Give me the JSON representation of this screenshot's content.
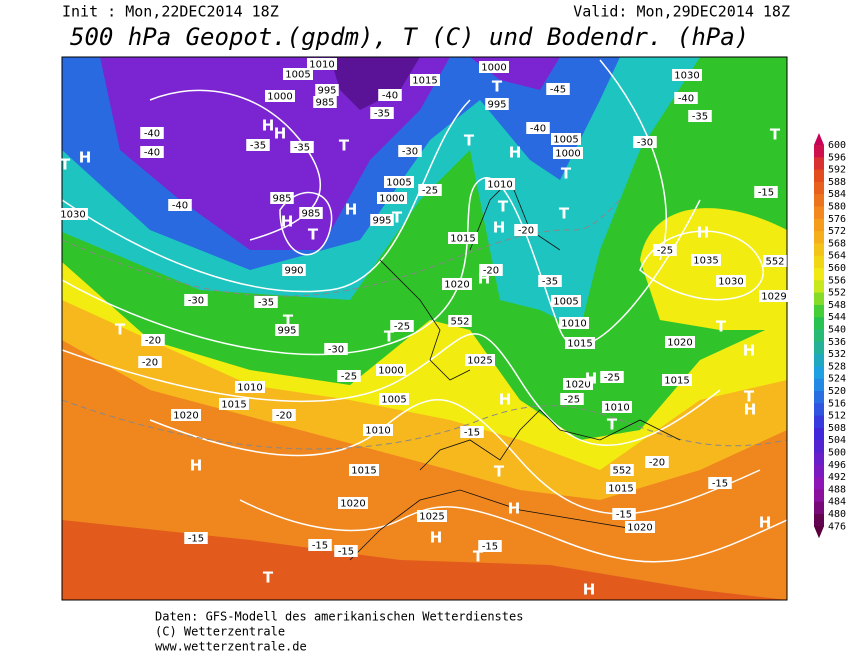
{
  "header": {
    "init": "Init : Mon,22DEC2014 18Z",
    "valid": "Valid: Mon,29DEC2014 18Z",
    "title": "500 hPa Geopot.(gpdm), T (C) und Bodendr. (hPa)"
  },
  "colorbar": {
    "values": [
      600,
      596,
      592,
      588,
      584,
      580,
      576,
      572,
      568,
      564,
      560,
      556,
      552,
      548,
      544,
      540,
      536,
      532,
      528,
      524,
      520,
      516,
      512,
      508,
      504,
      500,
      496,
      492,
      488,
      484,
      480,
      476
    ]
  },
  "map": {
    "labels": [
      "1030",
      "H",
      "T",
      "-40",
      "-40",
      "-40",
      "-30",
      "-20",
      "-20",
      "T",
      "1010",
      "1015",
      "1020",
      "-20",
      "H",
      "-15",
      "-15",
      "-15",
      "T",
      "1000",
      "1005",
      "1010",
      "995",
      "985",
      "H",
      "H",
      "-35",
      "-35",
      "T",
      "-40",
      "-35",
      "-30",
      "985",
      "985",
      "H",
      "T",
      "H",
      "T",
      "995",
      "1000",
      "1005",
      "-25",
      "990",
      "-35",
      "T",
      "995",
      "-30",
      "-25",
      "1000",
      "T",
      "-25",
      "552",
      "1005",
      "1010",
      "1015",
      "1020",
      "1025",
      "H",
      "-15",
      "T",
      "H",
      "-15",
      "T",
      "H",
      "H",
      "1025",
      "1020",
      "H",
      "-20",
      "1015",
      "H",
      "T",
      "1010",
      "-20",
      "T",
      "-35",
      "1005",
      "1010",
      "1015",
      "1020",
      "H",
      "-25",
      "1010",
      "T",
      "-25",
      "552",
      "-20",
      "1015",
      "-15",
      "1020",
      "1015",
      "1020",
      "T",
      "H",
      "H",
      "T",
      "-15",
      "H",
      "1030",
      "1035",
      "H",
      "-25",
      "552",
      "1029",
      "-15",
      "T",
      "1030",
      "-40",
      "-35",
      "-30",
      "H",
      "-40",
      "1005",
      "1000",
      "-45",
      "T",
      "1015",
      "T",
      "1000",
      "995",
      "T"
    ]
  },
  "footer": {
    "lines": [
      "Daten: GFS-Modell des amerikanischen Wetterdienstes",
      "(C) Wetterzentrale",
      "www.wetterzentrale.de"
    ]
  }
}
